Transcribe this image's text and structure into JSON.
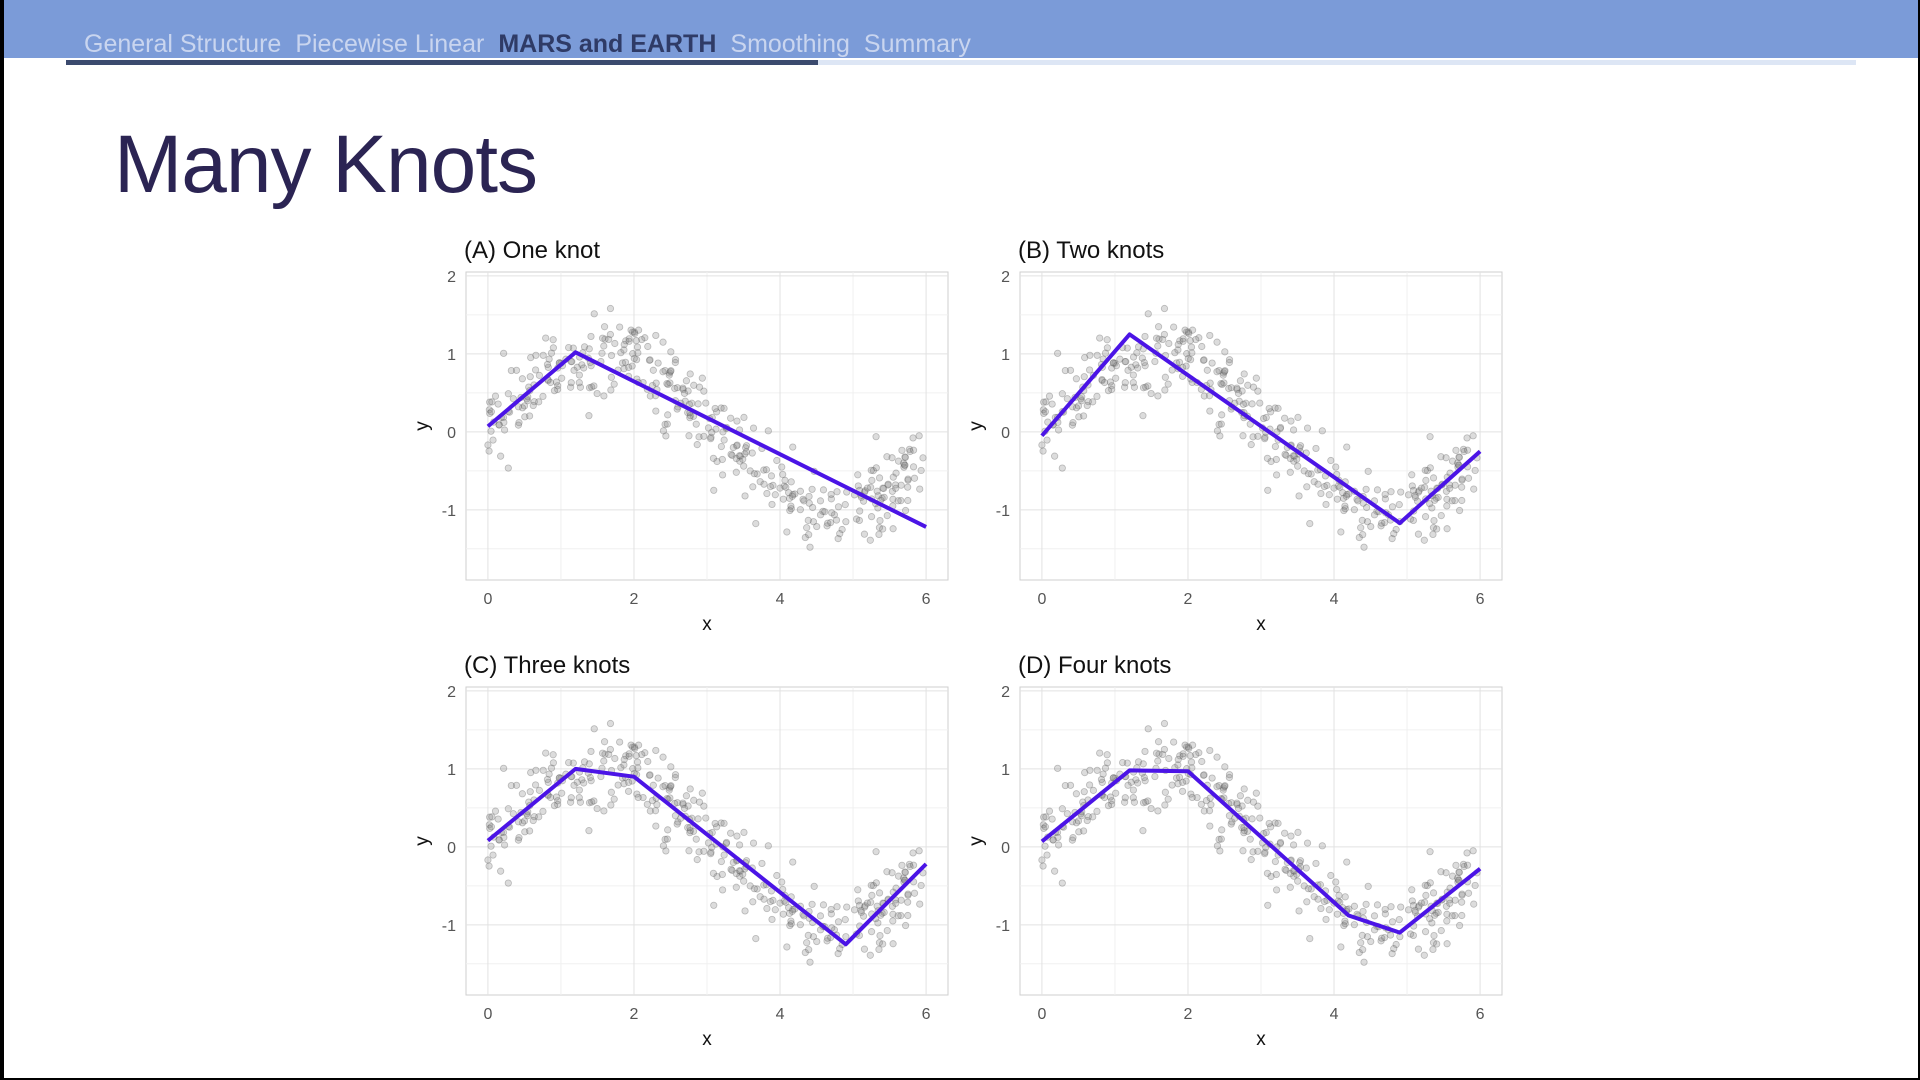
{
  "nav": {
    "items": [
      "General Structure",
      "Piecewise Linear",
      "MARS and EARTH",
      "Smoothing",
      "Summary"
    ],
    "active_index": 2,
    "progress": 0.42
  },
  "slide": {
    "title": "Many Knots"
  },
  "colors": {
    "nav_bar": "#7b9bd8",
    "fit_line": "#4b14e6",
    "points": "#808080",
    "title": "#2b2453"
  },
  "chart_data": [
    {
      "type": "scatter",
      "title": "(A) One knot",
      "xlabel": "x",
      "ylabel": "y",
      "xlim": [
        -0.3,
        6.3
      ],
      "ylim": [
        -1.9,
        2.05
      ],
      "xticks": [
        0,
        2,
        4,
        6
      ],
      "yticks": [
        -1,
        0,
        1,
        2
      ],
      "grid": true,
      "fit": {
        "x": [
          0,
          1.2,
          6
        ],
        "y": [
          0.07,
          1.02,
          -1.22
        ]
      }
    },
    {
      "type": "scatter",
      "title": "(B) Two knots",
      "xlabel": "x",
      "ylabel": "y",
      "xlim": [
        -0.3,
        6.3
      ],
      "ylim": [
        -1.9,
        2.05
      ],
      "xticks": [
        0,
        2,
        4,
        6
      ],
      "yticks": [
        -1,
        0,
        1,
        2
      ],
      "grid": true,
      "fit": {
        "x": [
          0,
          1.2,
          4.9,
          6
        ],
        "y": [
          -0.05,
          1.25,
          -1.17,
          -0.25
        ]
      }
    },
    {
      "type": "scatter",
      "title": "(C) Three knots",
      "xlabel": "x",
      "ylabel": "y",
      "xlim": [
        -0.3,
        6.3
      ],
      "ylim": [
        -1.9,
        2.05
      ],
      "xticks": [
        0,
        2,
        4,
        6
      ],
      "yticks": [
        -1,
        0,
        1,
        2
      ],
      "grid": true,
      "fit": {
        "x": [
          0,
          1.2,
          2,
          4.9,
          6
        ],
        "y": [
          0.08,
          1.0,
          0.9,
          -1.25,
          -0.22
        ]
      }
    },
    {
      "type": "scatter",
      "title": "(D) Four knots",
      "xlabel": "x",
      "ylabel": "y",
      "xlim": [
        -0.3,
        6.3
      ],
      "ylim": [
        -1.9,
        2.05
      ],
      "xticks": [
        0,
        2,
        4,
        6
      ],
      "yticks": [
        -1,
        0,
        1,
        2
      ],
      "grid": true,
      "fit": {
        "x": [
          0,
          1.2,
          2,
          4.2,
          4.9,
          6
        ],
        "y": [
          0.07,
          0.98,
          0.97,
          -0.88,
          -1.1,
          -0.28
        ]
      }
    }
  ]
}
